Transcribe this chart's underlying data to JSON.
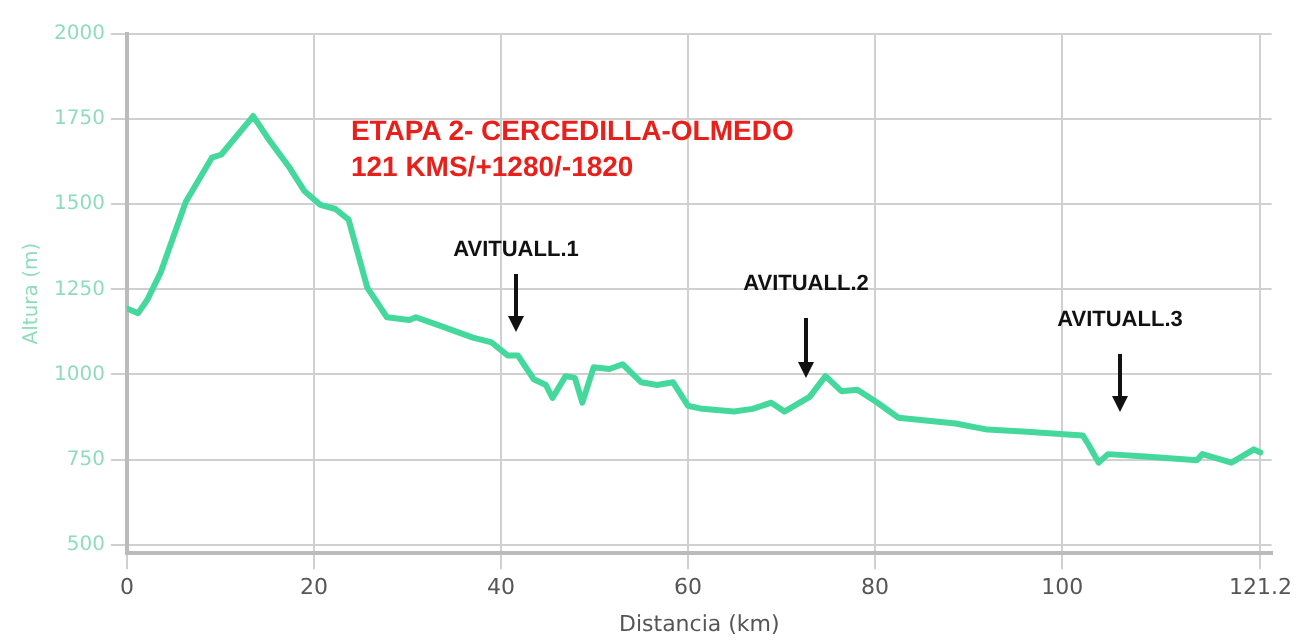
{
  "chart_data": {
    "type": "line",
    "title": "ETAPA 2- CERCEDILLA-OLMEDO",
    "subtitle": "121 KMS/+1280/-1820",
    "xlabel": "Distancia (km)",
    "ylabel": "Altura (m)",
    "x": [
      0,
      1.2,
      2.2,
      3.6,
      6.3,
      9.1,
      10.1,
      13.5,
      15.2,
      17.3,
      19,
      20.7,
      22.3,
      23.7,
      25.7,
      27.8,
      30.2,
      30.9,
      33.6,
      37,
      39,
      40.7,
      41.8,
      43.5,
      44.8,
      45.5,
      46.9,
      47.9,
      48.7,
      49.9,
      51.6,
      53,
      55,
      56.7,
      58.4,
      60,
      61.5,
      64.9,
      66.9,
      68.9,
      70.3,
      73,
      74.7,
      76.4,
      78.1,
      80.1,
      82.5,
      88.6,
      92,
      95.4,
      102.2,
      102.8,
      103.9,
      104.9,
      108.9,
      114.4,
      115,
      118.1,
      120.5,
      121.2
    ],
    "series": [
      {
        "color": "#45d89c",
        "values": [
          1194,
          1180,
          1220,
          1299,
          1507,
          1637,
          1646,
          1759,
          1689,
          1611,
          1538,
          1498,
          1486,
          1455,
          1255,
          1168,
          1160,
          1168,
          1142,
          1108,
          1094,
          1056,
          1056,
          986,
          969,
          931,
          995,
          990,
          917,
          1021,
          1016,
          1030,
          977,
          969,
          977,
          908,
          899,
          891,
          899,
          917,
          891,
          934,
          995,
          951,
          955,
          920,
          873,
          856,
          838,
          833,
          821,
          795,
          741,
          766,
          759,
          748,
          766,
          741,
          780,
          771
        ]
      }
    ],
    "xlim": [
      0,
      122.4
    ],
    "xticks": [
      0,
      20,
      40,
      60,
      80,
      100,
      121.2
    ],
    "ylim": [
      475,
      2000
    ],
    "yticks": [
      500,
      750,
      1000,
      1250,
      1500,
      1750,
      2000
    ],
    "grid": true,
    "legend": false,
    "marker": "none",
    "line_style": "solid",
    "annotations": [
      "AVITUALL.1",
      "AVITUALL.2",
      "AVITUALL.3"
    ]
  }
}
